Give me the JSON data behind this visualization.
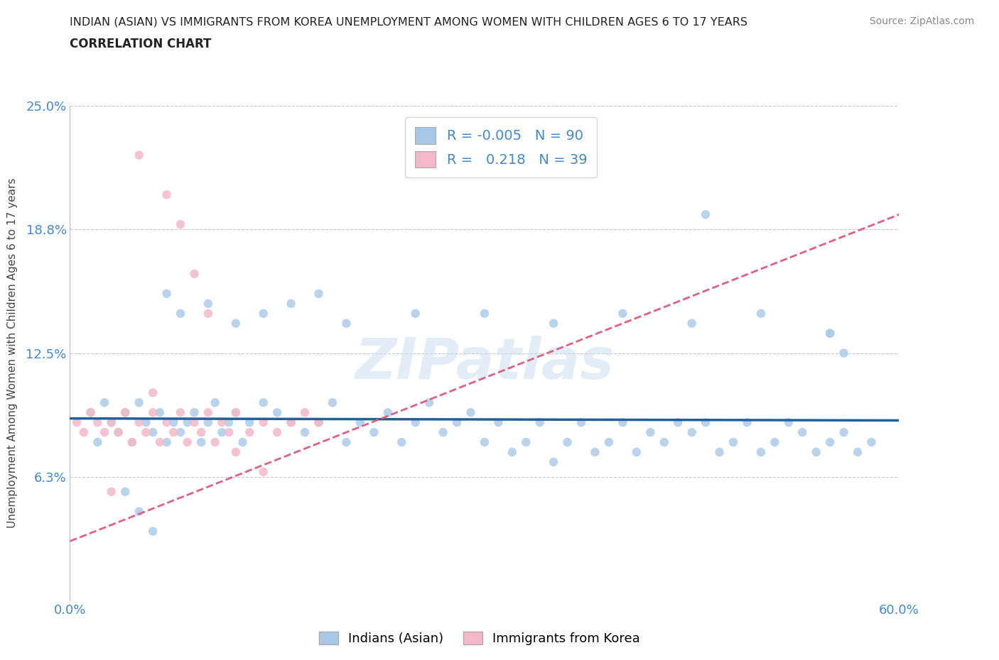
{
  "title_line1": "INDIAN (ASIAN) VS IMMIGRANTS FROM KOREA UNEMPLOYMENT AMONG WOMEN WITH CHILDREN AGES 6 TO 17 YEARS",
  "title_line2": "CORRELATION CHART",
  "source_text": "Source: ZipAtlas.com",
  "ylabel": "Unemployment Among Women with Children Ages 6 to 17 years",
  "xlim": [
    0,
    60
  ],
  "ylim": [
    0,
    25
  ],
  "ytick_values": [
    0,
    6.25,
    12.5,
    18.75,
    25.0
  ],
  "ytick_labels": [
    "",
    "6.3%",
    "12.5%",
    "18.8%",
    "25.0%"
  ],
  "blue_color": "#a8c8e8",
  "pink_color": "#f4b8c8",
  "blue_line_color": "#2060a0",
  "pink_line_color": "#e06080",
  "legend_blue_r": "-0.005",
  "legend_blue_n": "90",
  "legend_pink_r": "0.218",
  "legend_pink_n": "39",
  "legend_label_blue": "Indians (Asian)",
  "legend_label_pink": "Immigrants from Korea",
  "background_color": "#ffffff",
  "grid_color": "#c8c8c8",
  "title_color": "#222222",
  "axis_label_color": "#444444",
  "tick_label_color": "#4488cc",
  "blue_scatter_x": [
    1.5,
    2.0,
    2.5,
    3.0,
    3.5,
    4.0,
    4.5,
    5.0,
    5.5,
    6.0,
    6.5,
    7.0,
    7.5,
    8.0,
    8.5,
    9.0,
    9.5,
    10.0,
    10.5,
    11.0,
    11.5,
    12.0,
    12.5,
    13.0,
    14.0,
    15.0,
    16.0,
    17.0,
    18.0,
    19.0,
    20.0,
    21.0,
    22.0,
    23.0,
    24.0,
    25.0,
    26.0,
    27.0,
    28.0,
    29.0,
    30.0,
    31.0,
    32.0,
    33.0,
    34.0,
    35.0,
    36.0,
    37.0,
    38.0,
    39.0,
    40.0,
    41.0,
    42.0,
    43.0,
    44.0,
    45.0,
    46.0,
    47.0,
    48.0,
    49.0,
    50.0,
    51.0,
    52.0,
    53.0,
    54.0,
    55.0,
    56.0,
    57.0,
    58.0,
    7.0,
    8.0,
    10.0,
    12.0,
    14.0,
    16.0,
    18.0,
    20.0,
    25.0,
    30.0,
    35.0,
    40.0,
    45.0,
    50.0,
    55.0,
    56.0,
    4.0,
    5.0,
    6.0,
    46.0,
    55.0
  ],
  "blue_scatter_y": [
    9.5,
    8.0,
    10.0,
    9.0,
    8.5,
    9.5,
    8.0,
    10.0,
    9.0,
    8.5,
    9.5,
    8.0,
    9.0,
    8.5,
    9.0,
    9.5,
    8.0,
    9.0,
    10.0,
    8.5,
    9.0,
    9.5,
    8.0,
    9.0,
    10.0,
    9.5,
    9.0,
    8.5,
    9.0,
    10.0,
    8.0,
    9.0,
    8.5,
    9.5,
    8.0,
    9.0,
    10.0,
    8.5,
    9.0,
    9.5,
    8.0,
    9.0,
    7.5,
    8.0,
    9.0,
    7.0,
    8.0,
    9.0,
    7.5,
    8.0,
    9.0,
    7.5,
    8.5,
    8.0,
    9.0,
    8.5,
    9.0,
    7.5,
    8.0,
    9.0,
    7.5,
    8.0,
    9.0,
    8.5,
    7.5,
    8.0,
    8.5,
    7.5,
    8.0,
    15.5,
    14.5,
    15.0,
    14.0,
    14.5,
    15.0,
    15.5,
    14.0,
    14.5,
    14.5,
    14.0,
    14.5,
    14.0,
    14.5,
    13.5,
    12.5,
    5.5,
    4.5,
    3.5,
    19.5,
    13.5
  ],
  "pink_scatter_x": [
    0.5,
    1.0,
    1.5,
    2.0,
    2.5,
    3.0,
    3.5,
    4.0,
    4.5,
    5.0,
    5.5,
    6.0,
    6.5,
    7.0,
    7.5,
    8.0,
    8.5,
    9.0,
    9.5,
    10.0,
    10.5,
    11.0,
    11.5,
    12.0,
    13.0,
    14.0,
    15.0,
    16.0,
    17.0,
    18.0,
    5.0,
    7.0,
    8.0,
    9.0,
    10.0,
    6.0,
    12.0,
    14.0,
    3.0
  ],
  "pink_scatter_y": [
    9.0,
    8.5,
    9.5,
    9.0,
    8.5,
    9.0,
    8.5,
    9.5,
    8.0,
    9.0,
    8.5,
    9.5,
    8.0,
    9.0,
    8.5,
    9.5,
    8.0,
    9.0,
    8.5,
    9.5,
    8.0,
    9.0,
    8.5,
    9.5,
    8.5,
    9.0,
    8.5,
    9.0,
    9.5,
    9.0,
    22.5,
    20.5,
    19.0,
    16.5,
    14.5,
    10.5,
    7.5,
    6.5,
    5.5
  ],
  "blue_trend_x": [
    0,
    60
  ],
  "blue_trend_y": [
    9.2,
    9.1
  ],
  "pink_trend_x": [
    0,
    60
  ],
  "pink_trend_y": [
    3.0,
    19.5
  ]
}
